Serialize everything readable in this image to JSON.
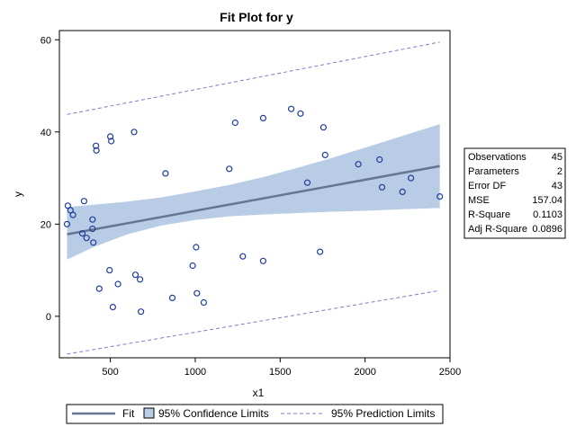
{
  "colors": {
    "band": "#b8cce6",
    "fit": "#667591",
    "prediction": "#7a7cc6",
    "point": "#1f3d99",
    "frame": "#000000"
  },
  "chart_data": {
    "type": "scatter",
    "title": "Fit Plot for y",
    "xlabel": "x1",
    "ylabel": "y",
    "xlim": [
      200,
      2500
    ],
    "ylim": [
      -9,
      62
    ],
    "xticks": [
      "500",
      "1000",
      "1500",
      "2000",
      "2500"
    ],
    "yticks": [
      "0",
      "20",
      "40",
      "60"
    ],
    "xtick_values": [
      500,
      1000,
      1500,
      2000,
      2500
    ],
    "ytick_values": [
      0,
      20,
      40,
      60
    ],
    "grid": false,
    "legend_placement": "bottom",
    "points": [
      {
        "x": 245,
        "y": 20
      },
      {
        "x": 250,
        "y": 24
      },
      {
        "x": 265,
        "y": 23
      },
      {
        "x": 280,
        "y": 22
      },
      {
        "x": 335,
        "y": 18
      },
      {
        "x": 345,
        "y": 25
      },
      {
        "x": 360,
        "y": 17
      },
      {
        "x": 395,
        "y": 21
      },
      {
        "x": 395,
        "y": 19
      },
      {
        "x": 400,
        "y": 16
      },
      {
        "x": 415,
        "y": 37
      },
      {
        "x": 418,
        "y": 36
      },
      {
        "x": 435,
        "y": 6
      },
      {
        "x": 495,
        "y": 10
      },
      {
        "x": 500,
        "y": 39
      },
      {
        "x": 505,
        "y": 38
      },
      {
        "x": 515,
        "y": 2
      },
      {
        "x": 545,
        "y": 7
      },
      {
        "x": 640,
        "y": 40
      },
      {
        "x": 648,
        "y": 9
      },
      {
        "x": 675,
        "y": 8
      },
      {
        "x": 680,
        "y": 1
      },
      {
        "x": 825,
        "y": 31
      },
      {
        "x": 865,
        "y": 4
      },
      {
        "x": 985,
        "y": 11
      },
      {
        "x": 1005,
        "y": 15
      },
      {
        "x": 1010,
        "y": 5
      },
      {
        "x": 1050,
        "y": 3
      },
      {
        "x": 1200,
        "y": 32
      },
      {
        "x": 1235,
        "y": 42
      },
      {
        "x": 1280,
        "y": 13
      },
      {
        "x": 1400,
        "y": 43
      },
      {
        "x": 1400,
        "y": 12
      },
      {
        "x": 1565,
        "y": 45
      },
      {
        "x": 1620,
        "y": 44
      },
      {
        "x": 1660,
        "y": 29
      },
      {
        "x": 1735,
        "y": 14
      },
      {
        "x": 1755,
        "y": 41
      },
      {
        "x": 1765,
        "y": 35
      },
      {
        "x": 1960,
        "y": 33
      },
      {
        "x": 2085,
        "y": 34
      },
      {
        "x": 2100,
        "y": 28
      },
      {
        "x": 2220,
        "y": 27
      },
      {
        "x": 2270,
        "y": 30
      },
      {
        "x": 2440,
        "y": 26
      }
    ],
    "fit": {
      "x": [
        245,
        2440
      ],
      "y": [
        17.8,
        32.6
      ]
    },
    "confidence_band": {
      "x": [
        245,
        400,
        600,
        800,
        1000,
        1200,
        1400,
        1600,
        1800,
        2000,
        2200,
        2440
      ],
      "lower": [
        12.3,
        15.0,
        17.8,
        19.7,
        20.9,
        21.7,
        22.1,
        22.4,
        22.7,
        22.9,
        23.2,
        23.5
      ],
      "upper": [
        23.7,
        24.2,
        24.9,
        25.8,
        27.1,
        28.5,
        30.2,
        32.2,
        34.3,
        36.6,
        38.9,
        41.7
      ]
    },
    "prediction_limits": {
      "x": [
        245,
        2440
      ],
      "lower": [
        -8.2,
        5.6
      ],
      "upper": [
        43.8,
        59.5
      ]
    }
  },
  "stats": [
    {
      "label": "Observations",
      "value": "45"
    },
    {
      "label": "Parameters",
      "value": "2"
    },
    {
      "label": "Error DF",
      "value": "43"
    },
    {
      "label": "MSE",
      "value": "157.04"
    },
    {
      "label": "R-Square",
      "value": "0.1103"
    },
    {
      "label": "Adj R-Square",
      "value": "0.0896"
    }
  ],
  "legend": {
    "fit": "Fit",
    "confidence": "95% Confidence Limits",
    "prediction": "95% Prediction Limits"
  }
}
